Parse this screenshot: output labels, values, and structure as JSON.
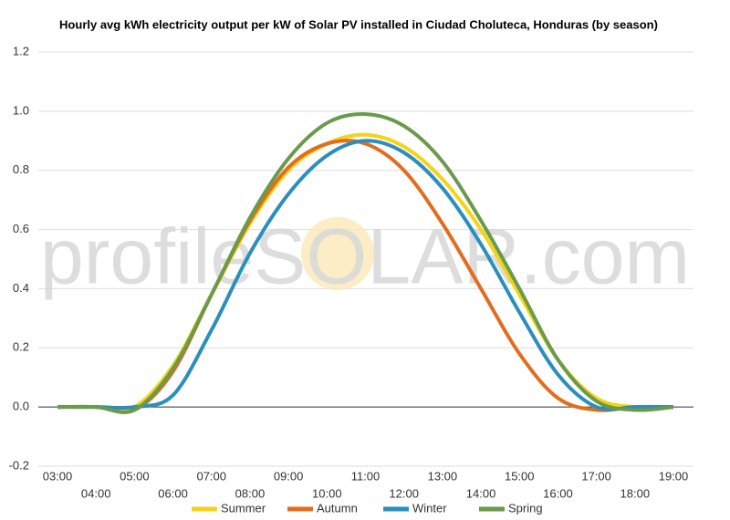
{
  "chart_data": {
    "type": "line",
    "title": "Hourly avg kWh electricity output per kW of Solar PV installed in Ciudad Choluteca, Honduras (by season)",
    "watermark": "profileSOLAR.com",
    "categories": [
      "03:00",
      "04:00",
      "05:00",
      "06:00",
      "07:00",
      "08:00",
      "09:00",
      "10:00",
      "11:00",
      "12:00",
      "13:00",
      "14:00",
      "15:00",
      "16:00",
      "17:00",
      "18:00",
      "19:00"
    ],
    "series": [
      {
        "name": "Summer",
        "color": "#f5d316",
        "values": [
          0,
          0,
          0,
          0.14,
          0.38,
          0.62,
          0.8,
          0.89,
          0.92,
          0.88,
          0.77,
          0.6,
          0.38,
          0.16,
          0.03,
          0,
          0
        ]
      },
      {
        "name": "Autumn",
        "color": "#e36c1e",
        "values": [
          0,
          0,
          -0.01,
          0.12,
          0.38,
          0.63,
          0.81,
          0.89,
          0.89,
          0.8,
          0.62,
          0.4,
          0.18,
          0.03,
          -0.01,
          0,
          0
        ]
      },
      {
        "name": "Winter",
        "color": "#2a8fbd",
        "values": [
          0,
          0,
          0,
          0.04,
          0.26,
          0.52,
          0.72,
          0.85,
          0.9,
          0.86,
          0.74,
          0.55,
          0.32,
          0.11,
          0,
          0,
          0
        ]
      },
      {
        "name": "Spring",
        "color": "#6a9a4b",
        "values": [
          0,
          0,
          -0.01,
          0.13,
          0.38,
          0.64,
          0.84,
          0.96,
          0.99,
          0.95,
          0.83,
          0.63,
          0.4,
          0.16,
          0.02,
          -0.01,
          0
        ]
      }
    ],
    "ylim": [
      -0.2,
      1.2
    ],
    "yticks": [
      -0.2,
      {
        "value": 0,
        "label": "0.0"
      },
      0.2,
      0.4,
      0.6,
      0.8,
      {
        "value": 1,
        "label": "1.0"
      },
      1.2
    ],
    "grid": true,
    "legend": "bottom"
  }
}
